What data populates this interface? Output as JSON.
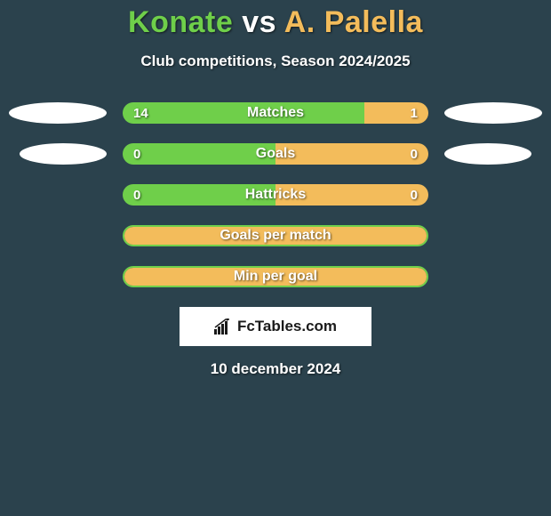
{
  "background_color": "#2b424d",
  "title": {
    "player1": "Konate",
    "vs": "vs",
    "player2": "A. Palella",
    "player1_color": "#6fcf4a",
    "vs_color": "#ffffff",
    "player2_color": "#f3bc5b"
  },
  "subtitle": "Club competitions, Season 2024/2025",
  "bars": [
    {
      "label": "Matches",
      "left_value": "14",
      "right_value": "1",
      "left_pct": 79,
      "right_pct": 21,
      "left_color": "#6fcf4a",
      "right_color": "#f3bc5b",
      "show_left_oval": true,
      "show_right_oval": true,
      "show_values": true
    },
    {
      "label": "Goals",
      "left_value": "0",
      "right_value": "0",
      "left_pct": 50,
      "right_pct": 50,
      "left_color": "#6fcf4a",
      "right_color": "#f3bc5b",
      "show_left_oval": true,
      "show_right_oval": true,
      "show_values": true,
      "oval_left_offset": 20,
      "oval_right_offset": 20,
      "oval_narrow": true
    },
    {
      "label": "Hattricks",
      "left_value": "0",
      "right_value": "0",
      "left_pct": 50,
      "right_pct": 50,
      "left_color": "#6fcf4a",
      "right_color": "#f3bc5b",
      "show_left_oval": false,
      "show_right_oval": false,
      "show_values": true
    },
    {
      "label": "Goals per match",
      "left_value": "",
      "right_value": "",
      "left_pct": 100,
      "right_pct": 0,
      "left_color": "#f3bc5b",
      "right_color": "#f3bc5b",
      "show_left_oval": false,
      "show_right_oval": false,
      "show_values": false,
      "border": "#6fcf4a"
    },
    {
      "label": "Min per goal",
      "left_value": "",
      "right_value": "",
      "left_pct": 100,
      "right_pct": 0,
      "left_color": "#f3bc5b",
      "right_color": "#f3bc5b",
      "show_left_oval": false,
      "show_right_oval": false,
      "show_values": false,
      "border": "#6fcf4a"
    }
  ],
  "brand": "FcTables.com",
  "brand_icon_color": "#1a1a1a",
  "date": "10 december 2024"
}
